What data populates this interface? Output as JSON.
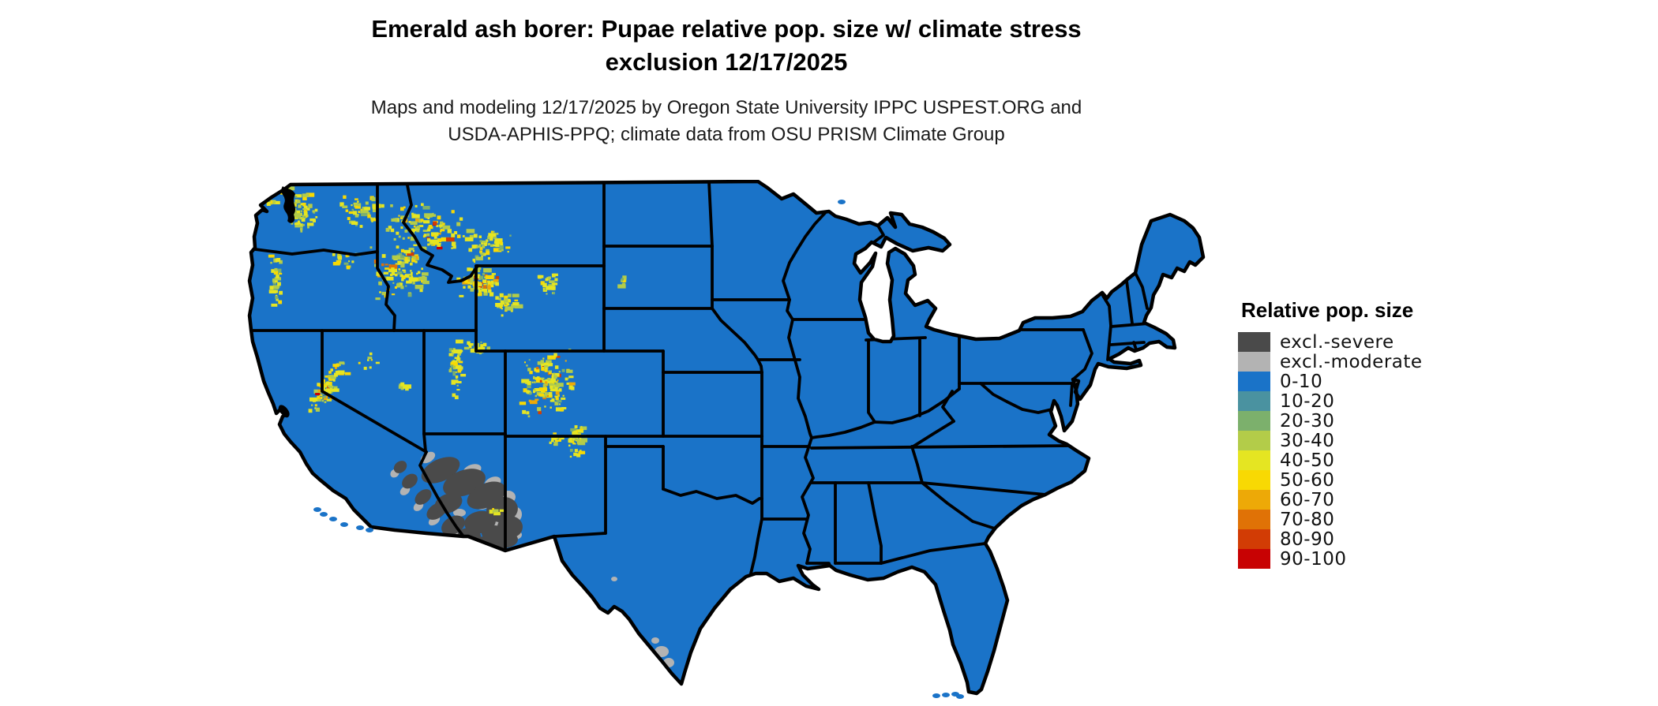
{
  "title": {
    "line1": "Emerald ash borer: Pupae relative pop. size w/ climate stress",
    "line2": "exclusion 12/17/2025"
  },
  "subtitle": {
    "line1": "Maps and modeling 12/17/2025 by Oregon State University IPPC USPEST.ORG and",
    "line2": "USDA-APHIS-PPQ; climate data from OSU PRISM Climate Group"
  },
  "legend": {
    "title": "Relative pop. size",
    "items": [
      {
        "label": "excl.-severe",
        "color": "#4a4a4a"
      },
      {
        "label": "excl.-moderate",
        "color": "#b3b3b3"
      },
      {
        "label": "0-10",
        "color": "#1a73c8"
      },
      {
        "label": "10-20",
        "color": "#4a92a0"
      },
      {
        "label": "20-30",
        "color": "#7cb06c"
      },
      {
        "label": "30-40",
        "color": "#b3cc49"
      },
      {
        "label": "40-50",
        "color": "#e5e522"
      },
      {
        "label": "50-60",
        "color": "#f8d903"
      },
      {
        "label": "60-70",
        "color": "#eda907"
      },
      {
        "label": "70-80",
        "color": "#e07206"
      },
      {
        "label": "80-90",
        "color": "#d23c05"
      },
      {
        "label": "90-100",
        "color": "#c80203"
      }
    ]
  },
  "map_data": {
    "description": "Contiguous US; nearly all area in 0-10 class (blue); montane hotspots 30-70 (yellows) in Cascades, N Rockies, Yellowstone, Sierra Nevada, Wasatch, Colorado Rockies, N New Mexico; climate-stress exclusion zones (severe dark gray, moderate light gray) over SE California / S Nevada / SW-central Arizona deserts and small spots in S Texas.",
    "land_color": "#1a73c8",
    "border_color": "#000000",
    "severe_color": "#4a4a4a",
    "moderate_color": "#b3b3b3",
    "hotspots": [
      [
        75,
        42,
        22,
        26,
        0,
        55,
        0
      ],
      [
        58,
        18,
        14,
        8,
        0,
        18,
        0
      ],
      [
        148,
        40,
        30,
        20,
        0,
        45,
        0
      ],
      [
        228,
        62,
        52,
        36,
        0,
        110,
        0.5
      ],
      [
        305,
        85,
        38,
        24,
        0,
        55,
        0
      ],
      [
        196,
        118,
        42,
        36,
        0,
        95,
        0.4
      ],
      [
        296,
        128,
        26,
        20,
        0,
        80,
        1
      ],
      [
        330,
        158,
        18,
        16,
        0,
        30,
        0
      ],
      [
        385,
        132,
        13,
        18,
        0,
        24,
        0
      ],
      [
        40,
        128,
        9,
        38,
        0,
        34,
        0
      ],
      [
        128,
        100,
        18,
        12,
        0,
        18,
        0
      ],
      [
        106,
        262,
        13,
        42,
        31,
        75,
        0.6
      ],
      [
        268,
        238,
        10,
        40,
        0,
        50,
        0
      ],
      [
        296,
        214,
        24,
        9,
        0,
        20,
        0
      ],
      [
        383,
        258,
        36,
        44,
        0,
        150,
        1
      ],
      [
        420,
        332,
        12,
        26,
        0,
        40,
        0
      ],
      [
        392,
        328,
        7,
        14,
        0,
        12,
        0
      ],
      [
        160,
        228,
        18,
        12,
        0,
        8,
        0
      ],
      [
        200,
        262,
        13,
        9,
        0,
        6,
        0
      ],
      [
        316,
        420,
        14,
        8,
        0,
        8,
        0
      ],
      [
        480,
        128,
        9,
        8,
        0,
        7,
        0
      ],
      [
        35,
        30,
        7,
        6,
        0,
        8,
        0
      ]
    ],
    "exclusion_severe": [
      [
        248,
        368,
        26,
        14,
        -25
      ],
      [
        278,
        384,
        28,
        16,
        -20
      ],
      [
        306,
        400,
        26,
        15,
        -25
      ],
      [
        326,
        418,
        20,
        16,
        -10
      ],
      [
        336,
        440,
        16,
        14,
        0
      ],
      [
        326,
        456,
        20,
        11,
        0
      ],
      [
        304,
        462,
        18,
        10,
        0
      ],
      [
        284,
        452,
        15,
        11,
        0
      ],
      [
        264,
        438,
        16,
        11,
        -30
      ],
      [
        243,
        420,
        14,
        9,
        -35
      ],
      [
        226,
        402,
        12,
        8,
        -40
      ],
      [
        209,
        382,
        11,
        8,
        -40
      ],
      [
        197,
        364,
        9,
        7,
        -40
      ],
      [
        258,
        410,
        18,
        12,
        -20
      ],
      [
        298,
        434,
        20,
        14,
        -10
      ],
      [
        316,
        448,
        16,
        10,
        0
      ]
    ],
    "exclusion_moderate": [
      [
        232,
        352,
        10,
        6,
        -30
      ],
      [
        258,
        362,
        12,
        6,
        -20
      ],
      [
        288,
        368,
        12,
        7,
        -20
      ],
      [
        314,
        384,
        11,
        7,
        -25
      ],
      [
        334,
        402,
        9,
        8,
        0
      ],
      [
        344,
        424,
        7,
        9,
        0
      ],
      [
        342,
        450,
        9,
        6,
        0
      ],
      [
        318,
        468,
        11,
        5,
        0
      ],
      [
        292,
        466,
        10,
        5,
        0
      ],
      [
        262,
        450,
        9,
        6,
        -30
      ],
      [
        240,
        432,
        8,
        5,
        -35
      ],
      [
        220,
        414,
        7,
        5,
        -40
      ],
      [
        203,
        394,
        7,
        5,
        -40
      ],
      [
        190,
        372,
        6,
        5,
        -40
      ],
      [
        272,
        422,
        8,
        5,
        0
      ],
      [
        322,
        436,
        7,
        5,
        0
      ],
      [
        268,
        392,
        8,
        5,
        -20
      ],
      [
        528,
        598,
        9,
        7,
        0
      ],
      [
        537,
        612,
        7,
        6,
        0
      ],
      [
        520,
        584,
        5,
        4,
        0
      ],
      [
        468,
        506,
        4,
        3,
        0
      ],
      [
        300,
        412,
        9,
        6,
        0
      ]
    ]
  }
}
